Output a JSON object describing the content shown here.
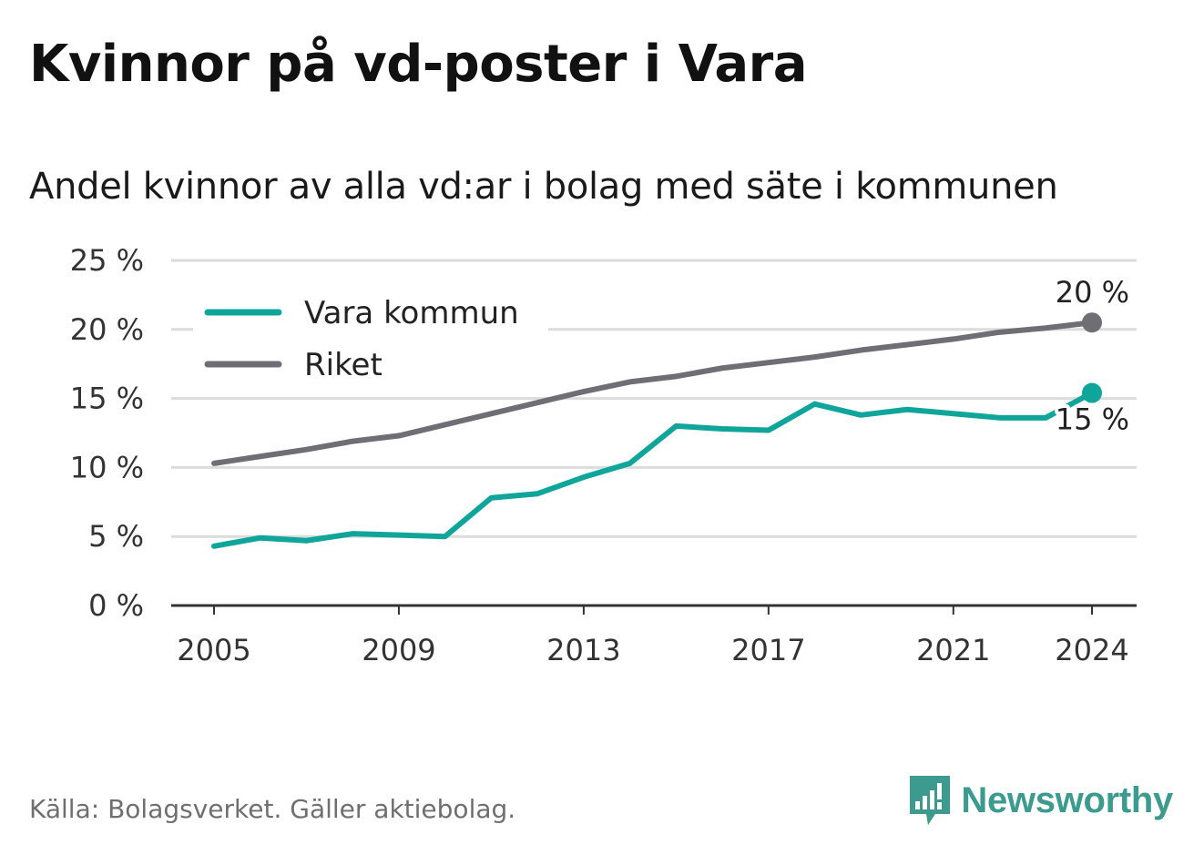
{
  "title": "Kvinnor på vd-poster i Vara",
  "subtitle": "Andel kvinnor av alla vd:ar i bolag med säte i kommunen",
  "source": "Källa: Bolagsverket. Gäller aktiebolag.",
  "brand": "Newsworthy",
  "chart_data": {
    "type": "line",
    "x": [
      2005,
      2006,
      2007,
      2008,
      2009,
      2010,
      2011,
      2012,
      2013,
      2014,
      2015,
      2016,
      2017,
      2018,
      2019,
      2020,
      2021,
      2022,
      2023,
      2024
    ],
    "x_ticks": [
      2005,
      2009,
      2013,
      2017,
      2021,
      2024
    ],
    "y_ticks": [
      0,
      5,
      10,
      15,
      20,
      25
    ],
    "y_tick_labels": [
      "0 %",
      "5 %",
      "10 %",
      "15 %",
      "20 %",
      "25 %"
    ],
    "ylim": [
      0,
      25
    ],
    "grid": true,
    "legend_position": "top-left",
    "series": [
      {
        "name": "Vara kommun",
        "color": "#10a59a",
        "values": [
          4.3,
          4.9,
          4.7,
          5.2,
          5.1,
          5.0,
          7.8,
          8.1,
          9.3,
          10.3,
          13.0,
          12.8,
          12.7,
          14.6,
          13.8,
          14.2,
          13.9,
          13.6,
          13.6,
          15.4
        ],
        "end_label": "15 %"
      },
      {
        "name": "Riket",
        "color": "#6f6e74",
        "values": [
          10.3,
          10.8,
          11.3,
          11.9,
          12.3,
          13.1,
          13.9,
          14.7,
          15.5,
          16.2,
          16.6,
          17.2,
          17.6,
          18.0,
          18.5,
          18.9,
          19.3,
          19.8,
          20.1,
          20.5
        ],
        "end_label": "20 %"
      }
    ]
  }
}
